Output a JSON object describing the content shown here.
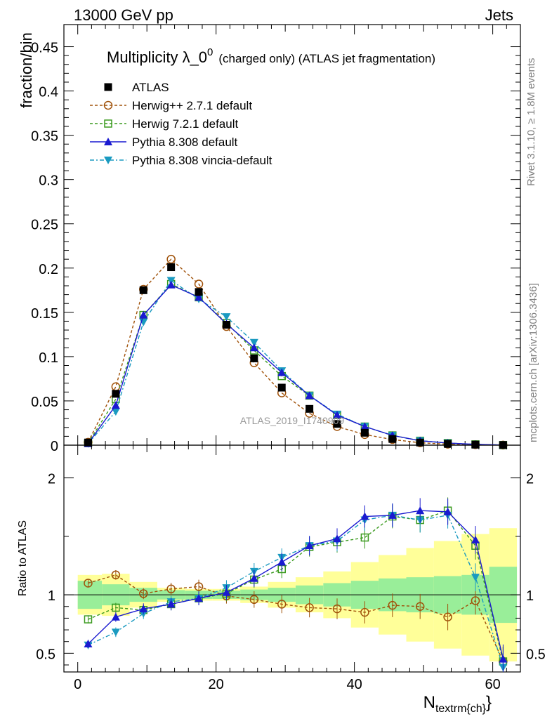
{
  "header": {
    "left": "13000 GeV pp",
    "right": "Jets"
  },
  "side_labels": {
    "rivet": "Rivet 3.1.10, ≥ 1.8M events",
    "mcplots": "mcplots.cern.ch [arXiv:1306.3436]"
  },
  "chart_data": {
    "type": "line",
    "title_main": "Multiplicity λ_0",
    "title_sup": "0",
    "title_suffix": "(charged only) (ATLAS jet fragmentation)",
    "watermark": "ATLAS_2019_I1740909",
    "ylabel": "fraction/bin",
    "ratio_ylabel": "Ratio to ATLAS",
    "xlabel": "N",
    "xlabel_sub": "textrm{ch}",
    "xlim": [
      -2,
      64
    ],
    "ylim": [
      0,
      0.475
    ],
    "ratio_ylim": [
      0.34,
      2.28
    ],
    "x_ticks": [
      0,
      20,
      40,
      60
    ],
    "y_ticks": [
      0,
      0.05,
      0.1,
      0.15,
      0.2,
      0.25,
      0.3,
      0.35,
      0.4,
      0.45
    ],
    "y_tick_labels": [
      "0",
      "0.05",
      "0.1",
      "0.15",
      "0.2",
      "0.25",
      "0.3",
      "0.35",
      "0.4",
      "0.45"
    ],
    "ratio_ticks": [
      0.5,
      1,
      2
    ],
    "ratio_tick_labels": [
      "0.5",
      "1",
      "2"
    ],
    "x": [
      1.5,
      5.5,
      9.5,
      13.5,
      17.5,
      21.5,
      25.5,
      29.5,
      33.5,
      37.5,
      41.5,
      45.5,
      49.5,
      53.5,
      57.5,
      61.5
    ],
    "band_edges": [
      0,
      3.5,
      7.5,
      11.5,
      15.5,
      19.5,
      23.5,
      27.5,
      31.5,
      35.5,
      39.5,
      43.5,
      47.5,
      51.5,
      55.5,
      59.5,
      63.5
    ],
    "band_green": [
      0.12,
      0.09,
      0.06,
      0.04,
      0.035,
      0.035,
      0.045,
      0.06,
      0.08,
      0.1,
      0.12,
      0.14,
      0.15,
      0.16,
      0.17,
      0.24
    ],
    "band_yellow": [
      0.17,
      0.18,
      0.11,
      0.06,
      0.05,
      0.05,
      0.07,
      0.11,
      0.15,
      0.2,
      0.28,
      0.34,
      0.4,
      0.46,
      0.52,
      0.57
    ],
    "series": [
      {
        "name": "ATLAS",
        "color": "#000000",
        "marker": "square-filled",
        "dash": "none",
        "values": [
          0.003,
          0.058,
          0.175,
          0.201,
          0.173,
          0.136,
          0.098,
          0.065,
          0.041,
          0.024,
          0.014,
          0.007,
          0.003,
          0.0014,
          0.0006,
          0.0002
        ],
        "ratio": []
      },
      {
        "name": "Herwig++ 2.7.1 default",
        "color": "#a0520a",
        "marker": "circle-open",
        "dash": "4,3",
        "values": [
          0.0033,
          0.066,
          0.176,
          0.21,
          0.182,
          0.134,
          0.093,
          0.059,
          0.036,
          0.021,
          0.012,
          0.0064,
          0.0027,
          0.0011,
          0.0006,
          0.0001
        ],
        "ratio": [
          1.1,
          1.17,
          1.01,
          1.05,
          1.07,
          0.99,
          0.96,
          0.92,
          0.89,
          0.88,
          0.85,
          0.91,
          0.9,
          0.81,
          0.95,
          0.43
        ]
      },
      {
        "name": "Herwig 7.2.1 default",
        "color": "#3a9a1e",
        "marker": "square-open",
        "dash": "4,3",
        "values": [
          0.0024,
          0.052,
          0.147,
          0.182,
          0.167,
          0.138,
          0.107,
          0.078,
          0.056,
          0.034,
          0.021,
          0.011,
          0.005,
          0.0024,
          0.0009,
          0.0001
        ],
        "ratio": [
          0.79,
          0.89,
          0.87,
          0.92,
          0.97,
          1.01,
          1.13,
          1.22,
          1.41,
          1.45,
          1.49,
          1.67,
          1.64,
          1.72,
          1.42,
          0.43
        ]
      },
      {
        "name": "Pythia 8.308 default",
        "color": "#1a1ad0",
        "marker": "triangle-up",
        "dash": "none",
        "values": [
          0.0018,
          0.045,
          0.147,
          0.181,
          0.167,
          0.137,
          0.11,
          0.082,
          0.056,
          0.034,
          0.021,
          0.011,
          0.005,
          0.0024,
          0.0009,
          0.0001
        ],
        "ratio": [
          0.58,
          0.81,
          0.88,
          0.92,
          0.97,
          1.02,
          1.14,
          1.28,
          1.42,
          1.48,
          1.67,
          1.68,
          1.72,
          1.71,
          1.47,
          0.45
        ]
      },
      {
        "name": "Pythia 8.308 vincia-default",
        "color": "#1a9ac0",
        "marker": "triangle-down",
        "dash": "6,3,2,3",
        "values": [
          0.0018,
          0.038,
          0.139,
          0.186,
          0.165,
          0.145,
          0.116,
          0.084,
          0.056,
          0.035,
          0.021,
          0.011,
          0.005,
          0.0023,
          0.0007,
          0.0001
        ],
        "ratio": [
          0.57,
          0.68,
          0.84,
          0.94,
          0.97,
          1.06,
          1.2,
          1.32,
          1.42,
          1.46,
          1.64,
          1.68,
          1.64,
          1.68,
          1.15,
          0.38
        ]
      }
    ]
  }
}
